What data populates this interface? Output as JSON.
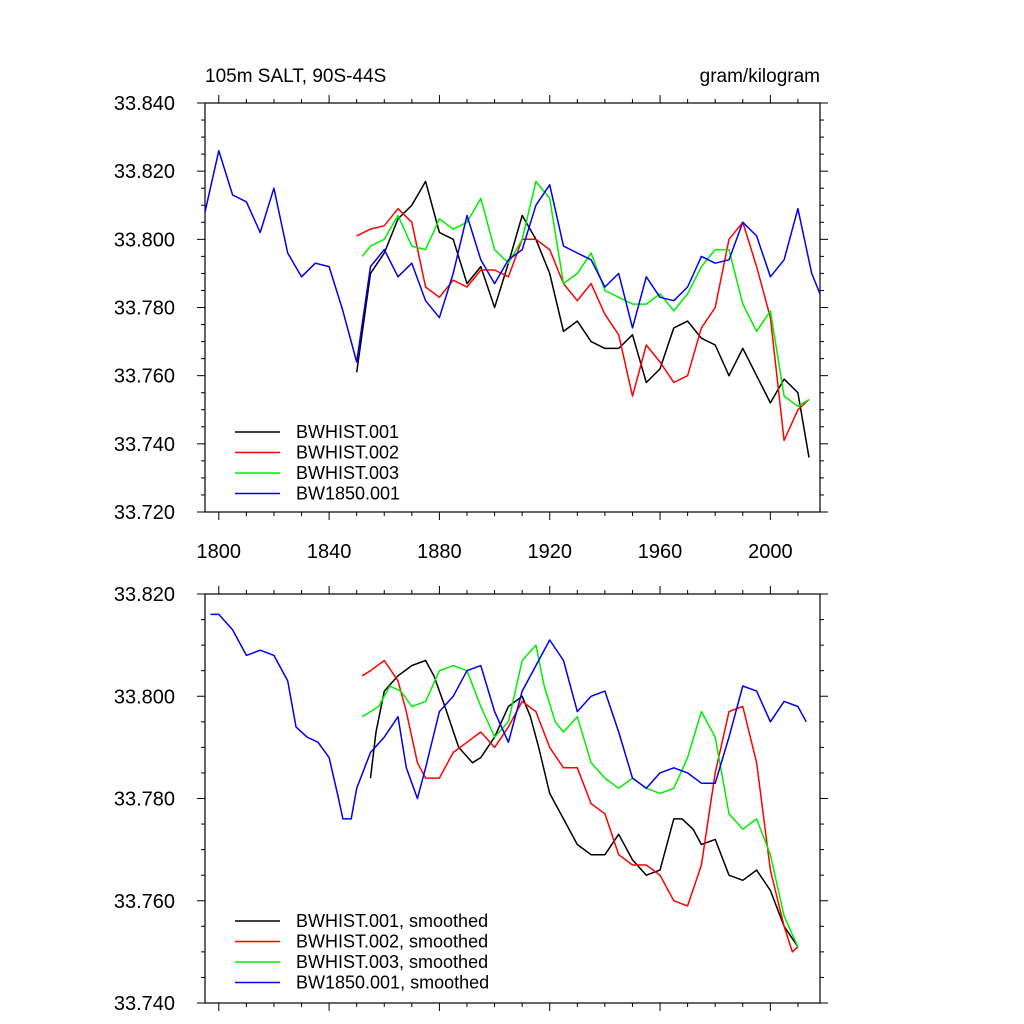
{
  "chart_data": [
    {
      "type": "line",
      "title": "105m SALT, 90S-44S",
      "units": "gram/kilogram",
      "xlabel": "",
      "ylabel": "",
      "xlim": [
        1795,
        2018
      ],
      "ylim": [
        33.72,
        33.84
      ],
      "x_ticks": [
        1800,
        1840,
        1880,
        1920,
        1960,
        2000
      ],
      "y_ticks": [
        33.72,
        33.74,
        33.76,
        33.78,
        33.8,
        33.82,
        33.84
      ],
      "y_tick_labels": [
        "33.720",
        "33.740",
        "33.760",
        "33.780",
        "33.800",
        "33.820",
        "33.840"
      ],
      "x_tick_labels": [
        "1800",
        "1840",
        "1880",
        "1920",
        "1960",
        "2000"
      ],
      "grid": false,
      "legend_position": "bottom-left",
      "series": [
        {
          "name": "BWHIST.001",
          "color": "#000000",
          "x": [
            1850,
            1855,
            1860,
            1865,
            1870,
            1875,
            1880,
            1885,
            1890,
            1895,
            1900,
            1905,
            1910,
            1915,
            1920,
            1925,
            1930,
            1935,
            1940,
            1945,
            1950,
            1955,
            1960,
            1965,
            1970,
            1975,
            1980,
            1985,
            1990,
            2000,
            2005,
            2010,
            2014
          ],
          "values": [
            33.761,
            33.79,
            33.796,
            33.806,
            33.81,
            33.817,
            33.802,
            33.8,
            33.787,
            33.792,
            33.78,
            33.793,
            33.807,
            33.8,
            33.79,
            33.773,
            33.776,
            33.77,
            33.768,
            33.768,
            33.772,
            33.758,
            33.762,
            33.774,
            33.776,
            33.771,
            33.769,
            33.76,
            33.768,
            33.752,
            33.759,
            33.755,
            33.736
          ]
        },
        {
          "name": "BWHIST.002",
          "color": "#ff0000",
          "x": [
            1850,
            1855,
            1860,
            1865,
            1870,
            1875,
            1880,
            1885,
            1890,
            1895,
            1900,
            1905,
            1910,
            1915,
            1920,
            1925,
            1930,
            1935,
            1940,
            1945,
            1950,
            1955,
            1960,
            1965,
            1970,
            1975,
            1980,
            1985,
            1990,
            1995,
            2000,
            2005,
            2010,
            2014
          ],
          "values": [
            33.801,
            33.803,
            33.804,
            33.809,
            33.805,
            33.786,
            33.783,
            33.788,
            33.786,
            33.791,
            33.791,
            33.789,
            33.8,
            33.8,
            33.797,
            33.787,
            33.782,
            33.787,
            33.778,
            33.772,
            33.754,
            33.769,
            33.764,
            33.758,
            33.76,
            33.774,
            33.78,
            33.8,
            33.805,
            33.792,
            33.777,
            33.741,
            33.75,
            33.753
          ]
        },
        {
          "name": "BWHIST.003",
          "color": "#00ee00",
          "x": [
            1852,
            1855,
            1860,
            1865,
            1870,
            1875,
            1880,
            1885,
            1890,
            1895,
            1900,
            1905,
            1910,
            1915,
            1920,
            1925,
            1930,
            1935,
            1940,
            1945,
            1950,
            1955,
            1960,
            1965,
            1970,
            1975,
            1980,
            1985,
            1990,
            1995,
            2000,
            2005,
            2010,
            2014
          ],
          "values": [
            33.795,
            33.798,
            33.8,
            33.807,
            33.798,
            33.797,
            33.806,
            33.803,
            33.805,
            33.812,
            33.797,
            33.793,
            33.8,
            33.817,
            33.812,
            33.787,
            33.79,
            33.796,
            33.785,
            33.783,
            33.781,
            33.781,
            33.784,
            33.779,
            33.784,
            33.792,
            33.797,
            33.797,
            33.781,
            33.773,
            33.779,
            33.754,
            33.751,
            33.753
          ]
        },
        {
          "name": "BW1850.001",
          "color": "#0000ee",
          "x": [
            1795,
            1800,
            1805,
            1810,
            1815,
            1820,
            1825,
            1830,
            1835,
            1840,
            1845,
            1850,
            1855,
            1860,
            1865,
            1870,
            1875,
            1880,
            1885,
            1890,
            1895,
            1900,
            1905,
            1910,
            1915,
            1920,
            1925,
            1930,
            1935,
            1940,
            1945,
            1950,
            1955,
            1960,
            1965,
            1970,
            1975,
            1980,
            1985,
            1990,
            1995,
            2000,
            2005,
            2010,
            2015,
            2018
          ],
          "values": [
            33.808,
            33.826,
            33.813,
            33.811,
            33.802,
            33.815,
            33.796,
            33.789,
            33.793,
            33.792,
            33.779,
            33.764,
            33.792,
            33.797,
            33.789,
            33.793,
            33.782,
            33.777,
            33.79,
            33.807,
            33.794,
            33.787,
            33.794,
            33.797,
            33.81,
            33.816,
            33.798,
            33.796,
            33.794,
            33.786,
            33.79,
            33.774,
            33.789,
            33.783,
            33.782,
            33.786,
            33.795,
            33.793,
            33.794,
            33.805,
            33.801,
            33.789,
            33.794,
            33.809,
            33.79,
            33.784
          ]
        }
      ]
    },
    {
      "type": "line",
      "title": "",
      "xlabel": "",
      "ylabel": "",
      "xlim": [
        1795,
        2018
      ],
      "ylim": [
        33.74,
        33.82
      ],
      "x_ticks": [
        1800,
        1840,
        1880,
        1920,
        1960,
        2000
      ],
      "y_ticks": [
        33.74,
        33.76,
        33.78,
        33.8,
        33.82
      ],
      "y_tick_labels": [
        "33.740",
        "33.760",
        "33.780",
        "33.800",
        "33.820"
      ],
      "grid": false,
      "legend_position": "bottom-left",
      "series": [
        {
          "name": "BWHIST.001, smoothed",
          "color": "#000000",
          "x": [
            1855,
            1857,
            1860,
            1865,
            1870,
            1875,
            1878,
            1882,
            1887,
            1892,
            1895,
            1900,
            1905,
            1910,
            1913,
            1916,
            1920,
            1925,
            1930,
            1935,
            1940,
            1945,
            1950,
            1955,
            1960,
            1965,
            1968,
            1972,
            1975,
            1980,
            1985,
            1990,
            1995,
            2000,
            2005,
            2010
          ],
          "values": [
            33.784,
            33.793,
            33.801,
            33.804,
            33.806,
            33.807,
            33.804,
            33.798,
            33.79,
            33.787,
            33.788,
            33.792,
            33.798,
            33.8,
            33.796,
            33.79,
            33.781,
            33.776,
            33.771,
            33.769,
            33.769,
            33.773,
            33.768,
            33.765,
            33.766,
            33.776,
            33.776,
            33.774,
            33.771,
            33.772,
            33.765,
            33.764,
            33.766,
            33.762,
            33.755,
            33.751
          ]
        },
        {
          "name": "BWHIST.002, smoothed",
          "color": "#ff0000",
          "x": [
            1852,
            1855,
            1860,
            1865,
            1868,
            1872,
            1875,
            1880,
            1885,
            1890,
            1895,
            1900,
            1905,
            1910,
            1915,
            1920,
            1925,
            1930,
            1935,
            1940,
            1945,
            1950,
            1955,
            1960,
            1965,
            1970,
            1975,
            1980,
            1985,
            1990,
            1995,
            2000,
            2005,
            2008,
            2010
          ],
          "values": [
            33.804,
            33.805,
            33.807,
            33.803,
            33.797,
            33.787,
            33.784,
            33.784,
            33.789,
            33.791,
            33.793,
            33.79,
            33.794,
            33.799,
            33.797,
            33.79,
            33.786,
            33.786,
            33.779,
            33.777,
            33.769,
            33.767,
            33.767,
            33.765,
            33.76,
            33.759,
            33.767,
            33.785,
            33.797,
            33.798,
            33.787,
            33.766,
            33.755,
            33.75,
            33.751
          ]
        },
        {
          "name": "BWHIST.003, smoothed",
          "color": "#00ee00",
          "x": [
            1852,
            1855,
            1858,
            1862,
            1866,
            1870,
            1875,
            1880,
            1885,
            1890,
            1895,
            1900,
            1905,
            1910,
            1915,
            1918,
            1922,
            1925,
            1930,
            1935,
            1940,
            1945,
            1950,
            1955,
            1960,
            1965,
            1970,
            1975,
            1980,
            1985,
            1990,
            1995,
            2000,
            2005,
            2010
          ],
          "values": [
            33.796,
            33.797,
            33.798,
            33.802,
            33.801,
            33.798,
            33.799,
            33.805,
            33.806,
            33.805,
            33.798,
            33.792,
            33.795,
            33.807,
            33.81,
            33.802,
            33.795,
            33.793,
            33.796,
            33.787,
            33.784,
            33.782,
            33.784,
            33.782,
            33.781,
            33.782,
            33.788,
            33.797,
            33.792,
            33.777,
            33.774,
            33.776,
            33.769,
            33.757,
            33.751
          ]
        },
        {
          "name": "BW1850.001, smoothed",
          "color": "#0000ee",
          "x": [
            1797,
            1800,
            1805,
            1810,
            1815,
            1820,
            1825,
            1828,
            1832,
            1836,
            1840,
            1843,
            1845,
            1848,
            1850,
            1855,
            1860,
            1865,
            1868,
            1872,
            1875,
            1880,
            1885,
            1890,
            1895,
            1900,
            1905,
            1910,
            1915,
            1920,
            1925,
            1930,
            1935,
            1940,
            1945,
            1950,
            1955,
            1960,
            1965,
            1970,
            1975,
            1980,
            1985,
            1990,
            1995,
            2000,
            2005,
            2010,
            2013
          ],
          "values": [
            33.816,
            33.816,
            33.813,
            33.808,
            33.809,
            33.808,
            33.803,
            33.794,
            33.792,
            33.791,
            33.788,
            33.781,
            33.776,
            33.776,
            33.782,
            33.789,
            33.792,
            33.796,
            33.786,
            33.78,
            33.786,
            33.797,
            33.8,
            33.805,
            33.806,
            33.797,
            33.791,
            33.801,
            33.806,
            33.811,
            33.807,
            33.797,
            33.8,
            33.801,
            33.793,
            33.784,
            33.782,
            33.785,
            33.786,
            33.785,
            33.783,
            33.783,
            33.792,
            33.802,
            33.801,
            33.795,
            33.799,
            33.798,
            33.795
          ]
        }
      ]
    }
  ]
}
